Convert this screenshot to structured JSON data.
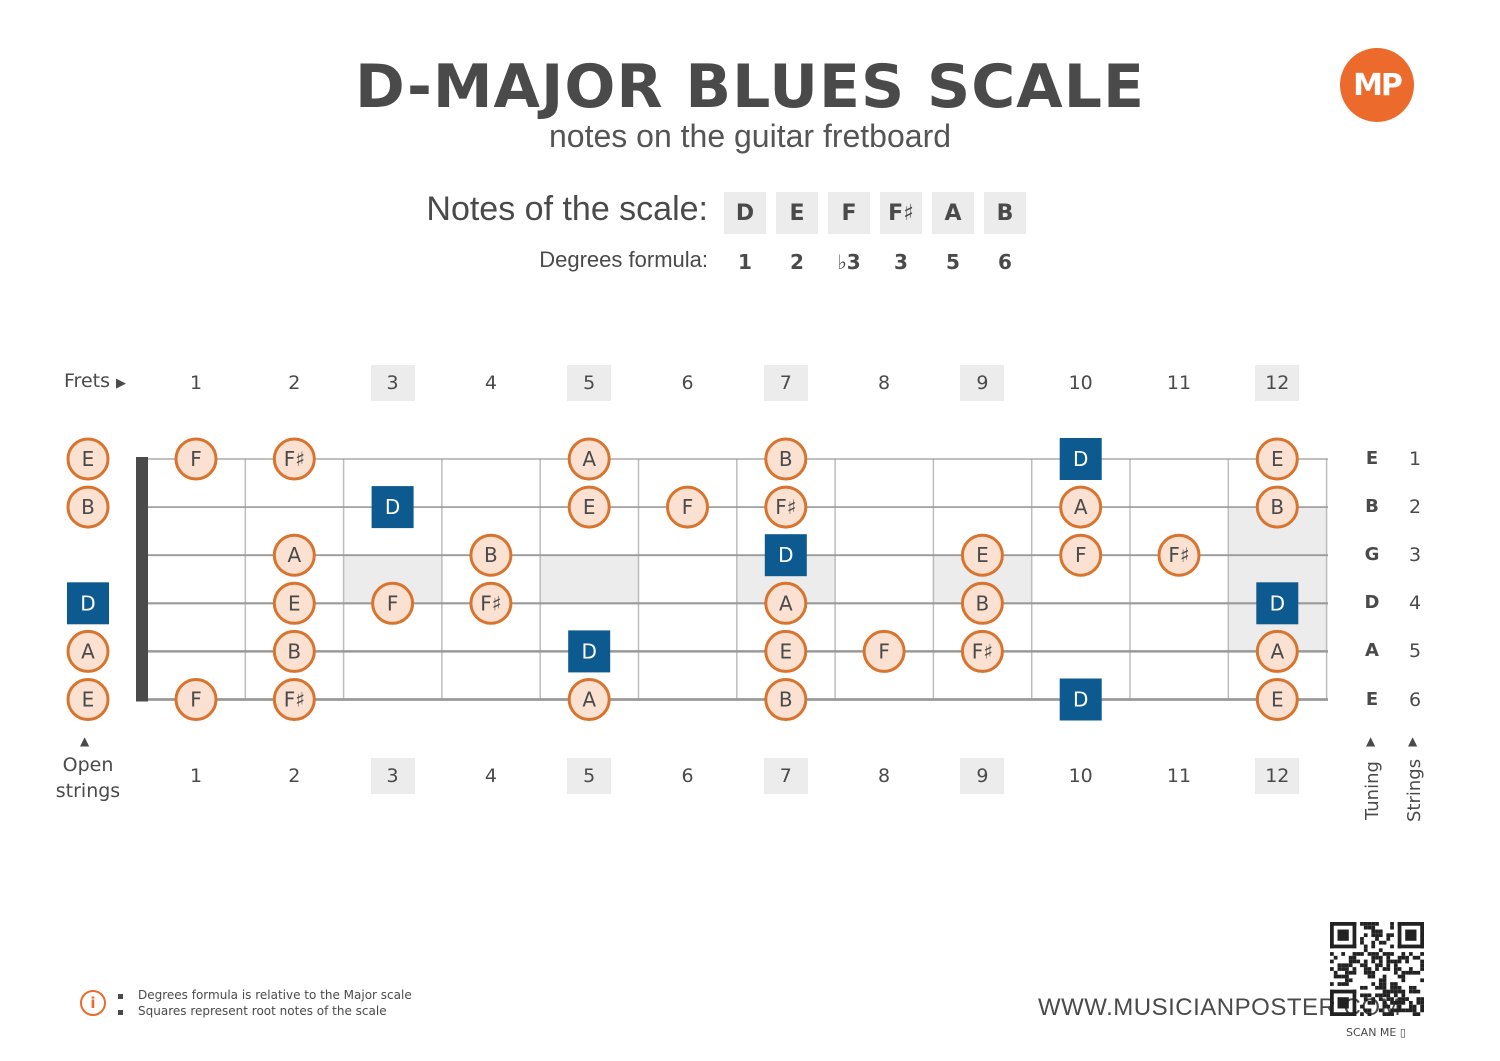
{
  "header": {
    "title": "D-MAJOR BLUES SCALE",
    "subtitle": "notes on the guitar fretboard",
    "logo_text": "MP",
    "accent_color": "#ec6a2c",
    "root_color": "#0d5a91"
  },
  "scale": {
    "label": "Notes of the scale:",
    "notes": [
      "D",
      "E",
      "F",
      "F♯",
      "A",
      "B"
    ],
    "degrees_label": "Degrees formula:",
    "degrees": [
      "1",
      "2",
      "♭3",
      "3",
      "5",
      "6"
    ]
  },
  "fretboard": {
    "frets_label": "Frets",
    "fret_numbers": [
      "1",
      "2",
      "3",
      "4",
      "5",
      "6",
      "7",
      "8",
      "9",
      "10",
      "11",
      "12"
    ],
    "shaded_frets": [
      3,
      5,
      7,
      9,
      12
    ],
    "open_label_line1": "Open",
    "open_label_line2": "strings",
    "tuning": [
      "E",
      "B",
      "G",
      "D",
      "A",
      "E"
    ],
    "string_numbers": [
      "1",
      "2",
      "3",
      "4",
      "5",
      "6"
    ],
    "tuning_label": "Tuning",
    "strings_label": "Strings",
    "root": "D",
    "notes": [
      {
        "string": 1,
        "fret": 0,
        "note": "E"
      },
      {
        "string": 1,
        "fret": 1,
        "note": "F"
      },
      {
        "string": 1,
        "fret": 2,
        "note": "F♯"
      },
      {
        "string": 1,
        "fret": 5,
        "note": "A"
      },
      {
        "string": 1,
        "fret": 7,
        "note": "B"
      },
      {
        "string": 1,
        "fret": 10,
        "note": "D"
      },
      {
        "string": 1,
        "fret": 12,
        "note": "E"
      },
      {
        "string": 2,
        "fret": 0,
        "note": "B"
      },
      {
        "string": 2,
        "fret": 3,
        "note": "D"
      },
      {
        "string": 2,
        "fret": 5,
        "note": "E"
      },
      {
        "string": 2,
        "fret": 6,
        "note": "F"
      },
      {
        "string": 2,
        "fret": 7,
        "note": "F♯"
      },
      {
        "string": 2,
        "fret": 10,
        "note": "A"
      },
      {
        "string": 2,
        "fret": 12,
        "note": "B"
      },
      {
        "string": 3,
        "fret": 2,
        "note": "A"
      },
      {
        "string": 3,
        "fret": 4,
        "note": "B"
      },
      {
        "string": 3,
        "fret": 7,
        "note": "D"
      },
      {
        "string": 3,
        "fret": 9,
        "note": "E"
      },
      {
        "string": 3,
        "fret": 10,
        "note": "F"
      },
      {
        "string": 3,
        "fret": 11,
        "note": "F♯"
      },
      {
        "string": 4,
        "fret": 0,
        "note": "D"
      },
      {
        "string": 4,
        "fret": 2,
        "note": "E"
      },
      {
        "string": 4,
        "fret": 3,
        "note": "F"
      },
      {
        "string": 4,
        "fret": 4,
        "note": "F♯"
      },
      {
        "string": 4,
        "fret": 7,
        "note": "A"
      },
      {
        "string": 4,
        "fret": 9,
        "note": "B"
      },
      {
        "string": 4,
        "fret": 12,
        "note": "D"
      },
      {
        "string": 5,
        "fret": 0,
        "note": "A"
      },
      {
        "string": 5,
        "fret": 2,
        "note": "B"
      },
      {
        "string": 5,
        "fret": 5,
        "note": "D"
      },
      {
        "string": 5,
        "fret": 7,
        "note": "E"
      },
      {
        "string": 5,
        "fret": 8,
        "note": "F"
      },
      {
        "string": 5,
        "fret": 9,
        "note": "F♯"
      },
      {
        "string": 5,
        "fret": 12,
        "note": "A"
      },
      {
        "string": 6,
        "fret": 0,
        "note": "E"
      },
      {
        "string": 6,
        "fret": 1,
        "note": "F"
      },
      {
        "string": 6,
        "fret": 2,
        "note": "F♯"
      },
      {
        "string": 6,
        "fret": 5,
        "note": "A"
      },
      {
        "string": 6,
        "fret": 7,
        "note": "B"
      },
      {
        "string": 6,
        "fret": 10,
        "note": "D"
      },
      {
        "string": 6,
        "fret": 12,
        "note": "E"
      }
    ]
  },
  "footer": {
    "note_1": "Degrees formula is relative to the Major scale",
    "note_2": "Squares represent root notes of the scale",
    "website": "WWW.MUSICIANPOSTER.COM",
    "scan_me": "SCAN ME"
  }
}
